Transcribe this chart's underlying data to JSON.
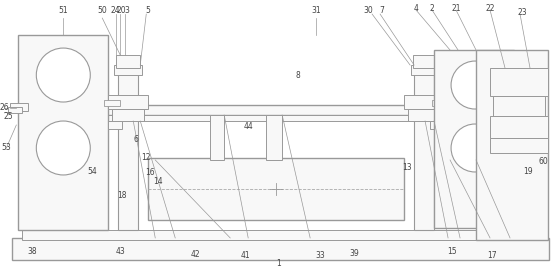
{
  "bg_color": "#ffffff",
  "line_color": "#999999",
  "fill_color": "#f8f8f8",
  "fill_light": "#ffffff",
  "font_size": 5.5,
  "fig_width": 5.59,
  "fig_height": 2.72,
  "dpi": 100
}
